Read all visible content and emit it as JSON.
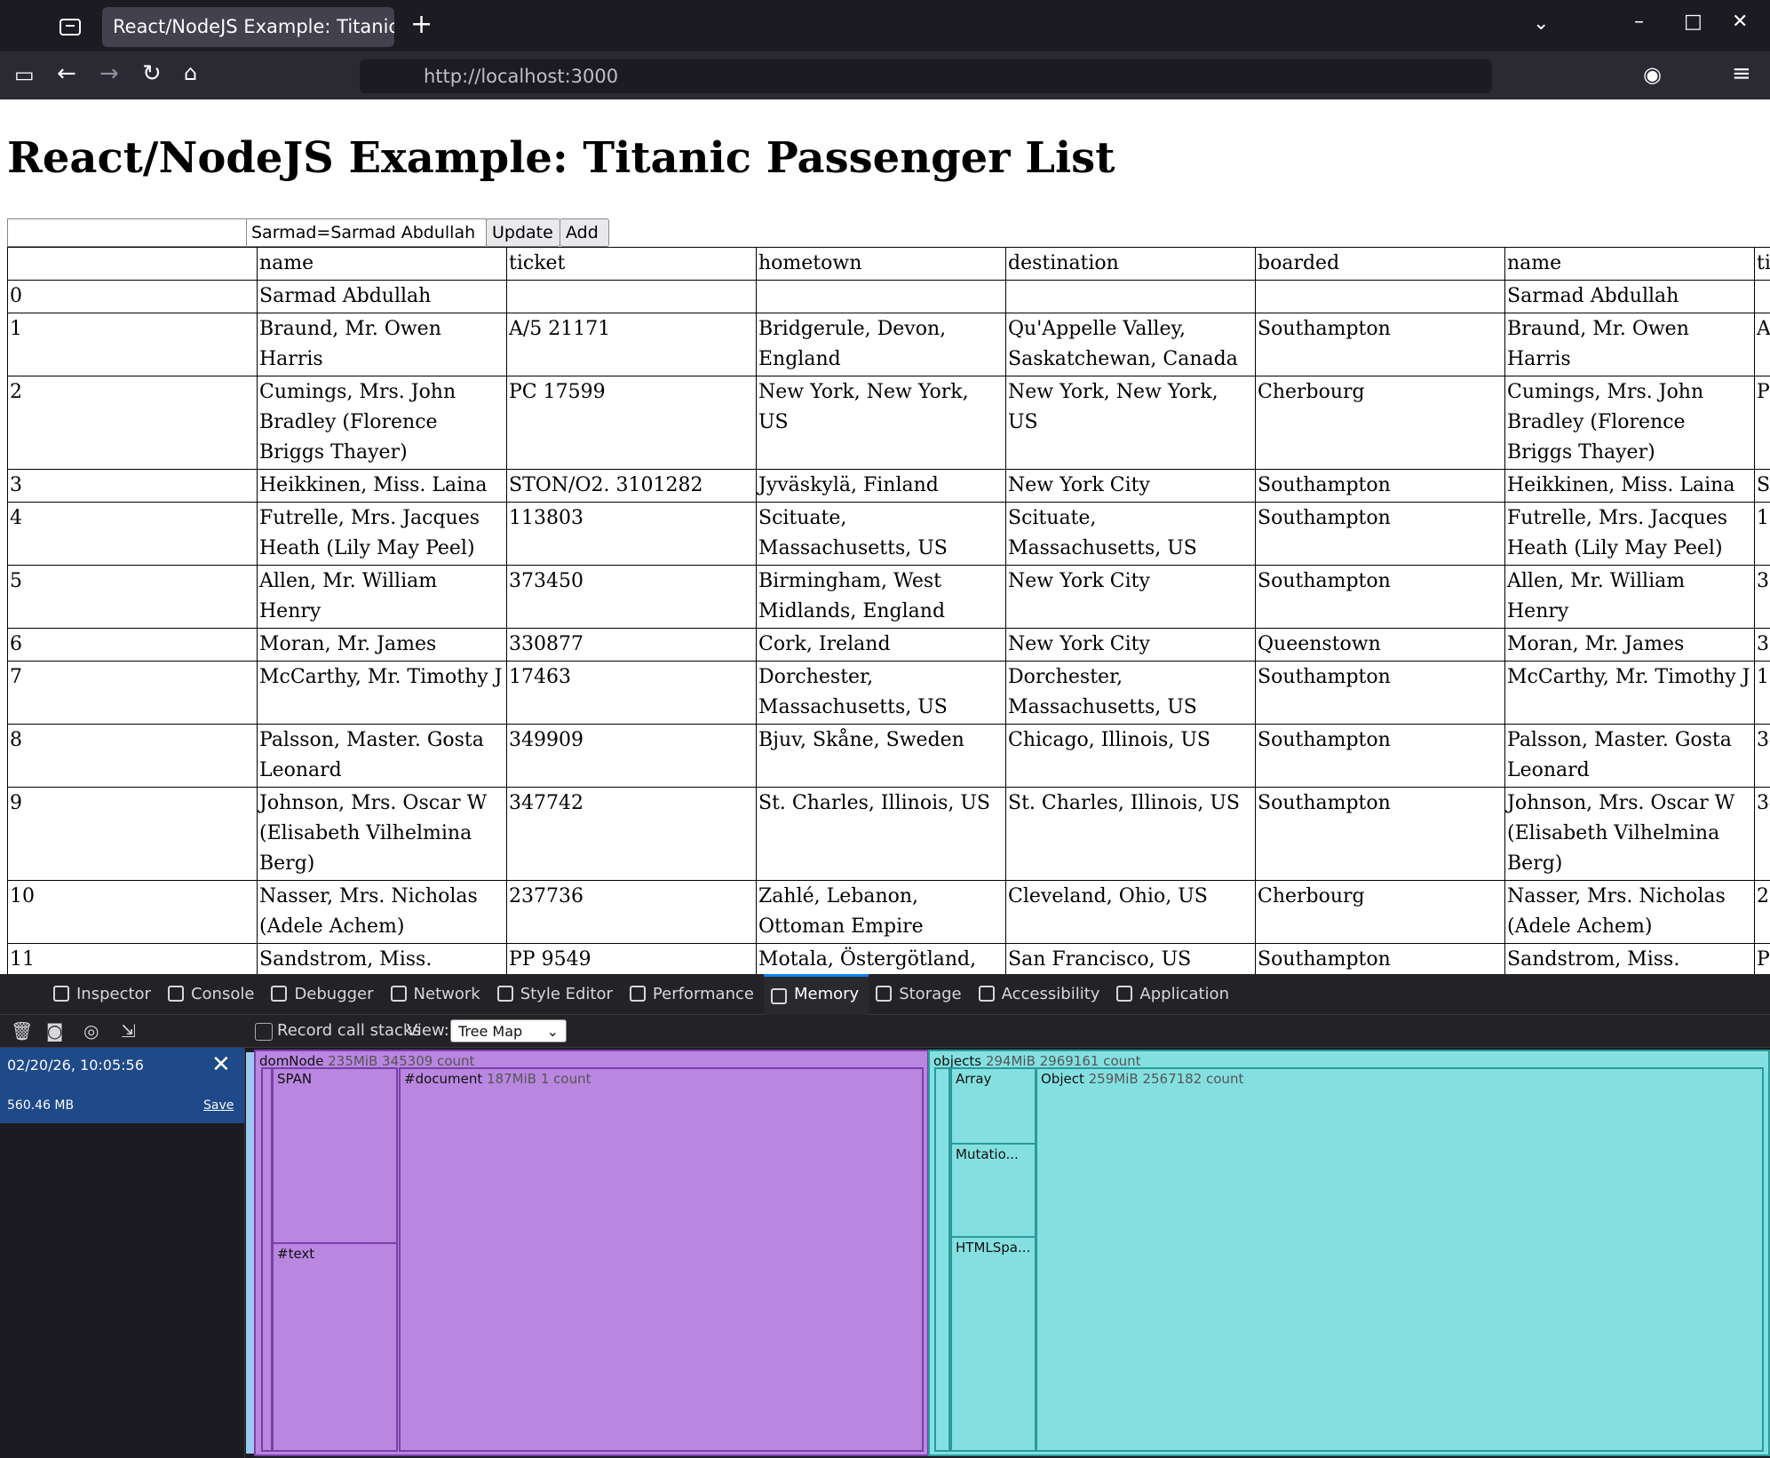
{
  "browser": {
    "tab_title": "React/NodeJS Example: Titanic Passenger List",
    "url": "http://localhost:3000"
  },
  "page": {
    "heading": "React/NodeJS Example: Titanic Passenger List",
    "edit_value": "Sarmad=Sarmad Abdullah",
    "buttons": [
      "Update",
      "Add"
    ]
  },
  "table": {
    "columns": [
      "name",
      "ticket",
      "hometown",
      "destination",
      "boarded"
    ],
    "rows": [
      {
        "id": "0",
        "name": "Sarmad Abdullah",
        "ticket": null,
        "hometown": null,
        "destination": null,
        "boarded": null
      },
      {
        "id": "1",
        "name": "Braund, Mr. Owen Harris",
        "ticket": "A/5 21171",
        "hometown": "Bridgerule, Devon, England",
        "destination": "Qu'Appelle Valley, Saskatchewan, Canada",
        "boarded": "Southampton"
      },
      {
        "id": "2",
        "name": "Cumings, Mrs. John Bradley (Florence Briggs Thayer)",
        "ticket": "PC 17599",
        "hometown": "New York, New York, US",
        "destination": "New York, New York, US",
        "boarded": "Cherbourg"
      },
      {
        "id": "3",
        "name": "Heikkinen, Miss. Laina",
        "ticket": "STON/O2. 3101282",
        "hometown": "Jyväskylä, Finland",
        "destination": "New York City",
        "boarded": "Southampton"
      },
      {
        "id": "4",
        "name": "Futrelle, Mrs. Jacques Heath (Lily May Peel)",
        "ticket": "113803",
        "hometown": "Scituate, Massachusetts, US",
        "destination": "Scituate, Massachusetts, US",
        "boarded": "Southampton"
      },
      {
        "id": "5",
        "name": "Allen, Mr. William Henry",
        "ticket": "373450",
        "hometown": "Birmingham, West Midlands, England",
        "destination": "New York City",
        "boarded": "Southampton"
      },
      {
        "id": "6",
        "name": "Moran, Mr. James",
        "ticket": "330877",
        "hometown": "Cork, Ireland",
        "destination": "New York City",
        "boarded": "Queenstown"
      },
      {
        "id": "7",
        "name": "McCarthy, Mr. Timothy J",
        "ticket": "17463",
        "hometown": "Dorchester, Massachusetts, US",
        "destination": "Dorchester, Massachusetts, US",
        "boarded": "Southampton"
      },
      {
        "id": "8",
        "name": "Palsson, Master. Gosta Leonard",
        "ticket": "349909",
        "hometown": "Bjuv, Skåne, Sweden",
        "destination": "Chicago, Illinois, US",
        "boarded": "Southampton"
      },
      {
        "id": "9",
        "name": "Johnson, Mrs. Oscar W (Elisabeth Vilhelmina Berg)",
        "ticket": "347742",
        "hometown": "St. Charles, Illinois, US",
        "destination": "St. Charles, Illinois, US",
        "boarded": "Southampton"
      },
      {
        "id": "10",
        "name": "Nasser, Mrs. Nicholas (Adele Achem)",
        "ticket": "237736",
        "hometown": "Zahlé, Lebanon, Ottoman Empire",
        "destination": "Cleveland, Ohio, US",
        "boarded": "Cherbourg"
      },
      {
        "id": "11",
        "name": "Sandstrom, Miss. Marguerite Rut",
        "ticket": "PP 9549",
        "hometown": "Motala, Östergötland, Sweden",
        "destination": "San Francisco, US",
        "boarded": "Southampton"
      }
    ]
  },
  "devtools": {
    "tabs": [
      "Inspector",
      "Console",
      "Debugger",
      "Network",
      "Style Editor",
      "Performance",
      "Memory",
      "Storage",
      "Accessibility",
      "Application"
    ],
    "record_call_stacks": "Record call stacks",
    "view_label": "View:",
    "view_value": "Tree Map",
    "snapshot": {
      "time": "02/20/26, 10:05:56",
      "size": "560.46 MB",
      "save": "Save"
    },
    "treemap": [
      {
        "name": "domNode",
        "detail": "235MiB 345309 count"
      },
      {
        "name": "SPAN"
      },
      {
        "name": "#text"
      },
      {
        "name": "#document",
        "detail": "187MiB 1 count"
      },
      {
        "name": "objects",
        "detail": "294MiB 2969161 count"
      },
      {
        "name": "Array"
      },
      {
        "name": "Mutatio..."
      },
      {
        "name": "HTMLSpa..."
      },
      {
        "name": "Object",
        "detail": "259MiB 2567182 count"
      }
    ]
  }
}
